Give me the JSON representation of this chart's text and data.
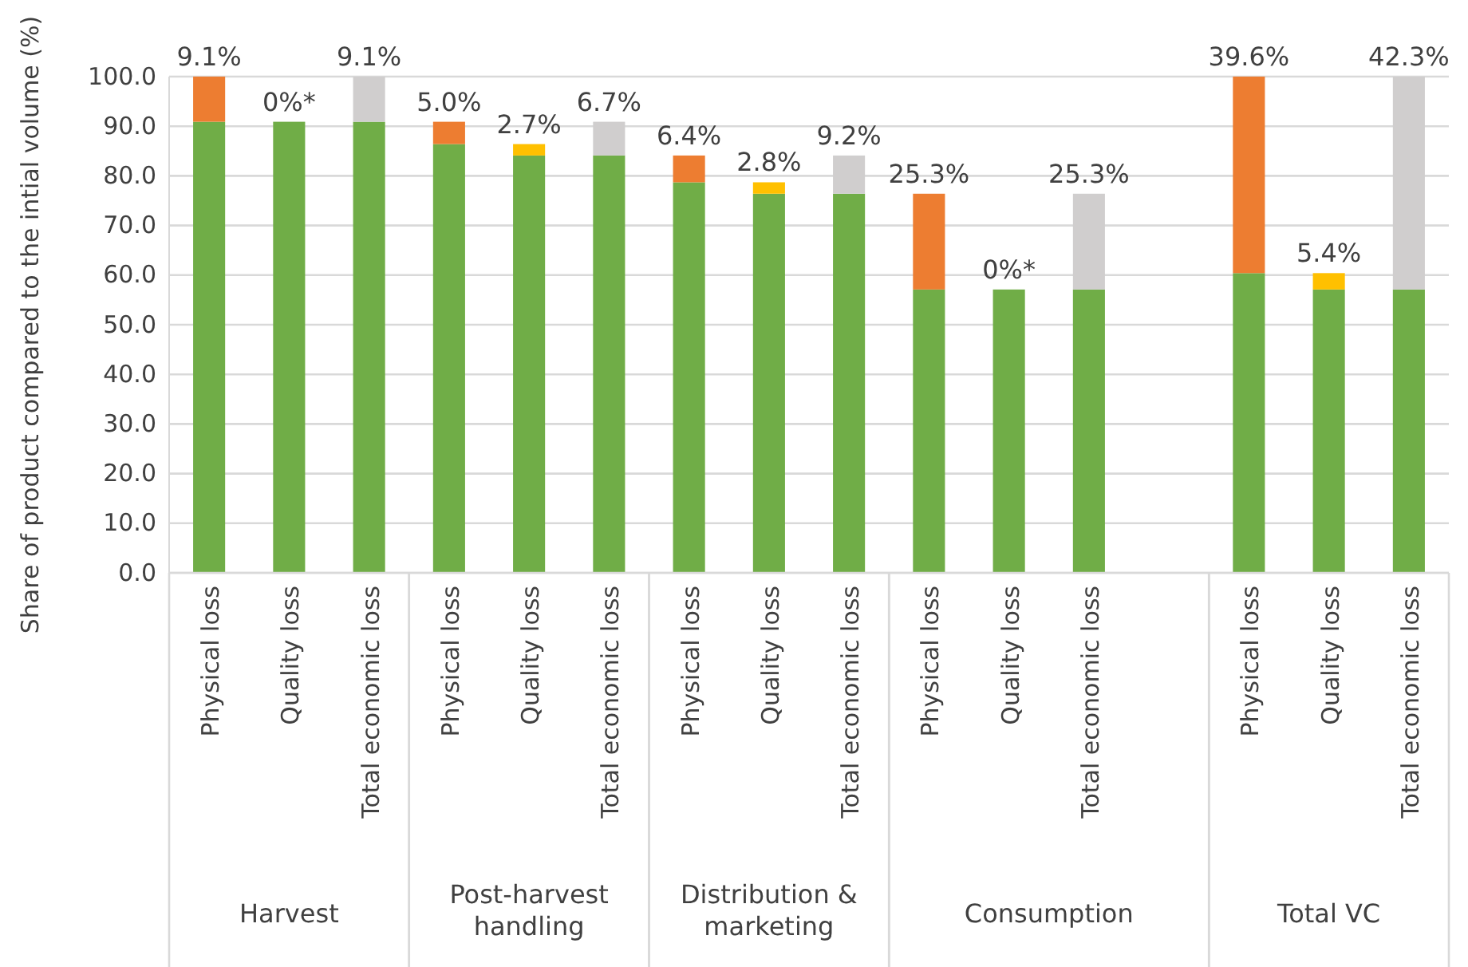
{
  "chart_data": {
    "type": "bar",
    "stacked": true,
    "ylabel": "Share of product compared to the intial volume (%)",
    "categories": [
      "Physical loss",
      "Quality loss",
      "Total economic loss",
      "Physical loss",
      "Quality loss",
      "Total economic loss",
      "Physical loss",
      "Quality loss",
      "Total economic loss",
      "Physical loss",
      "Quality loss",
      "Total economic loss",
      null,
      "Physical loss",
      "Quality loss",
      "Total economic loss"
    ],
    "series": [
      {
        "color": "#70ad47",
        "values": [
          90.9,
          90.9,
          90.9,
          86.4,
          84.1,
          84.1,
          78.7,
          76.4,
          76.4,
          57.1,
          57.1,
          57.1,
          null,
          60.4,
          57.1,
          57.1
        ]
      },
      {
        "color": "#ed7d31",
        "values": [
          9.1,
          null,
          null,
          4.5,
          null,
          null,
          5.4,
          null,
          null,
          19.3,
          null,
          null,
          null,
          39.6,
          null,
          null
        ]
      },
      {
        "color": "#ffc000",
        "values": [
          null,
          0,
          null,
          null,
          2.3,
          null,
          null,
          2.3,
          null,
          null,
          0,
          null,
          null,
          null,
          3.3,
          null
        ]
      },
      {
        "color": "#d0cece",
        "values": [
          null,
          null,
          9.1,
          null,
          null,
          6.8,
          null,
          null,
          7.7,
          null,
          null,
          19.3,
          null,
          null,
          null,
          42.9
        ]
      }
    ],
    "ylim": [
      0,
      100
    ],
    "yticks": [
      {
        "value": 0,
        "label": "0.0"
      },
      {
        "value": 10,
        "label": "10.0"
      },
      {
        "value": 20,
        "label": "20.0"
      },
      {
        "value": 30,
        "label": "30.0"
      },
      {
        "value": 40,
        "label": "40.0"
      },
      {
        "value": 50,
        "label": "50.0"
      },
      {
        "value": 60,
        "label": "60.0"
      },
      {
        "value": 70,
        "label": "70.0"
      },
      {
        "value": 80,
        "label": "80.0"
      },
      {
        "value": 90,
        "label": "90.0"
      },
      {
        "value": 100,
        "label": "100.0"
      }
    ],
    "grid": "y",
    "annotations": [
      "Harvest",
      "Post-harvest handling",
      "Distribution & marketing",
      "Consumption",
      "Total VC",
      "9.1%",
      "0%*",
      "9.1%",
      "5.0%",
      "2.7%",
      "6.7%",
      "6.4%",
      "2.8%",
      "9.2%",
      "25.3%",
      "0%*",
      "25.3%",
      "39.6%",
      "5.4%",
      "42.3%"
    ]
  }
}
